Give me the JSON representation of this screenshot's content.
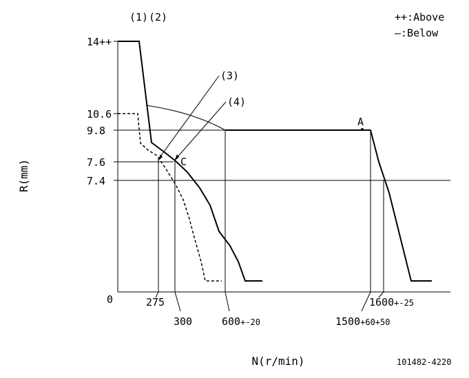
{
  "chart_data": {
    "type": "line",
    "xlabel": "N(r/min)",
    "ylabel": "R(mm)",
    "legend": {
      "above": "++:Above",
      "below": "—:Below"
    },
    "code": "101482-4220",
    "curve_labels": {
      "c1": "(1)",
      "c2": "(2)",
      "c3": "(3)",
      "c4": "(4)",
      "pointA": "A",
      "pointC": "C"
    },
    "y_ticks": [
      {
        "value": 14,
        "label": "14++"
      },
      {
        "value": 10.6,
        "label": "10.6"
      },
      {
        "value": 9.8,
        "label": "9.8"
      },
      {
        "value": 7.6,
        "label": "7.6"
      },
      {
        "value": 7.4,
        "label": "7.4"
      },
      {
        "value": 0,
        "label": "0"
      }
    ],
    "x_ticks": [
      {
        "value": 275,
        "label": "275"
      },
      {
        "value": 300,
        "label": "300"
      },
      {
        "value": 600,
        "label_main": "600",
        "label_tol": "+-20"
      },
      {
        "value": 1500,
        "label_main": "1500",
        "label_tol": "+60+50"
      },
      {
        "value": 1600,
        "label_main": "1600",
        "label_tol": "+-25"
      }
    ]
  }
}
